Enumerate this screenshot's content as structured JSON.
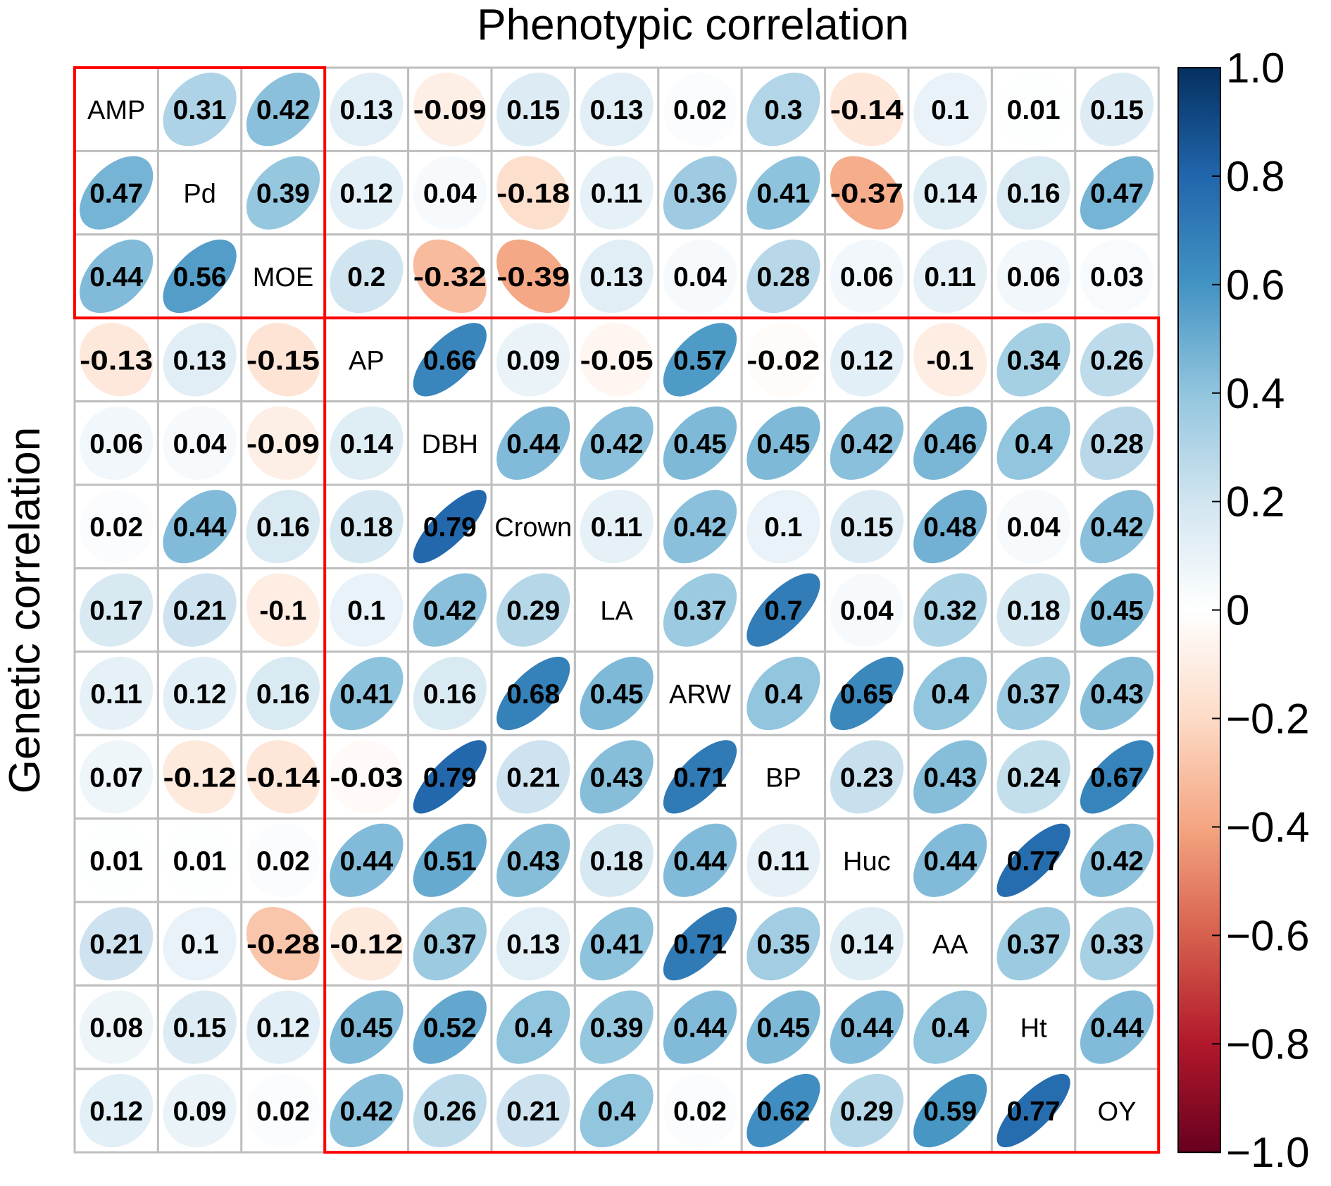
{
  "chart_data": {
    "type": "heatmap",
    "subtype": "correlation-ellipse-matrix",
    "title": "Phenotypic correlation",
    "ylabel": "Genetic correlation",
    "upper_triangle": "Phenotypic correlation",
    "lower_triangle": "Genetic correlation",
    "variables": [
      "AMP",
      "Pd",
      "MOE",
      "AP",
      "DBH",
      "Crown",
      "LA",
      "ARW",
      "BP",
      "Huc",
      "AA",
      "Ht",
      "OY"
    ],
    "matrix": [
      [
        null,
        0.31,
        0.42,
        0.13,
        -0.09,
        0.15,
        0.13,
        0.02,
        0.3,
        -0.14,
        0.1,
        0.01,
        0.15
      ],
      [
        0.47,
        null,
        0.39,
        0.12,
        0.04,
        -0.18,
        0.11,
        0.36,
        0.41,
        -0.37,
        0.14,
        0.16,
        0.47
      ],
      [
        0.44,
        0.56,
        null,
        0.2,
        -0.32,
        -0.39,
        0.13,
        0.04,
        0.28,
        0.06,
        0.11,
        0.06,
        0.03
      ],
      [
        -0.13,
        0.13,
        -0.15,
        null,
        0.66,
        0.09,
        -0.05,
        0.57,
        -0.02,
        0.12,
        -0.1,
        0.34,
        0.26
      ],
      [
        0.06,
        0.04,
        -0.09,
        0.14,
        null,
        0.44,
        0.42,
        0.45,
        0.45,
        0.42,
        0.46,
        0.4,
        0.28
      ],
      [
        0.02,
        0.44,
        0.16,
        0.18,
        0.79,
        null,
        0.11,
        0.42,
        0.1,
        0.15,
        0.48,
        0.04,
        0.42
      ],
      [
        0.17,
        0.21,
        -0.1,
        0.1,
        0.42,
        0.29,
        null,
        0.37,
        0.7,
        0.04,
        0.32,
        0.18,
        0.45
      ],
      [
        0.11,
        0.12,
        0.16,
        0.41,
        0.16,
        0.68,
        0.45,
        null,
        0.4,
        0.65,
        0.4,
        0.37,
        0.43
      ],
      [
        0.07,
        -0.12,
        -0.14,
        -0.03,
        0.79,
        0.21,
        0.43,
        0.71,
        null,
        0.23,
        0.43,
        0.24,
        0.67
      ],
      [
        0.01,
        0.01,
        0.02,
        0.44,
        0.51,
        0.43,
        0.18,
        0.44,
        0.11,
        null,
        0.44,
        0.77,
        0.42
      ],
      [
        0.21,
        0.1,
        -0.28,
        -0.12,
        0.37,
        0.13,
        0.41,
        0.71,
        0.35,
        0.14,
        null,
        0.37,
        0.33
      ],
      [
        0.08,
        0.15,
        0.12,
        0.45,
        0.52,
        0.4,
        0.39,
        0.44,
        0.45,
        0.44,
        0.4,
        null,
        0.44
      ],
      [
        0.12,
        0.09,
        0.02,
        0.42,
        0.26,
        0.21,
        0.4,
        0.02,
        0.62,
        0.29,
        0.59,
        0.77,
        null
      ]
    ],
    "highlight_groups": [
      {
        "from": "AMP",
        "to": "MOE",
        "color": "#FF0000"
      },
      {
        "from": "AP",
        "to": "OY",
        "color": "#FF0000"
      }
    ],
    "colorbar": {
      "range": [
        -1,
        1
      ],
      "tick_labels": [
        "1.0",
        "0.8",
        "0.6",
        "0.4",
        "0.2",
        "0",
        "−0.2",
        "−0.4",
        "−0.6",
        "−0.8",
        "−1.0"
      ],
      "tick_values": [
        1,
        0.8,
        0.6,
        0.4,
        0.2,
        0,
        -0.2,
        -0.4,
        -0.6,
        -0.8,
        -1
      ],
      "colormap": [
        "#67001F",
        "#B2182B",
        "#D6604D",
        "#F4A582",
        "#FDDBC7",
        "#FFFFFF",
        "#D1E5F0",
        "#92C5DE",
        "#4393C3",
        "#2166AC",
        "#053061"
      ],
      "placement": "right"
    },
    "grid": true,
    "grid_color": "#BEBEBE"
  }
}
